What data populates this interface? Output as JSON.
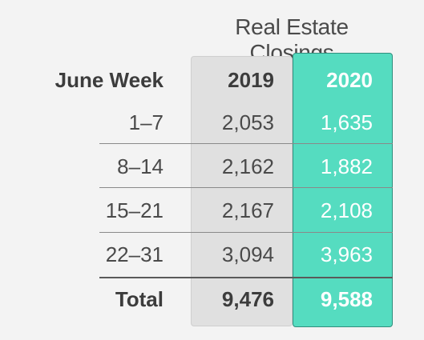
{
  "chart_data": {
    "type": "table",
    "title": "Real Estate Closings",
    "row_header": "June Week",
    "columns": [
      "2019",
      "2020"
    ],
    "rows": [
      {
        "label": "1–7",
        "values": [
          "2,053",
          "1,635"
        ]
      },
      {
        "label": "8–14",
        "values": [
          "2,162",
          "1,882"
        ]
      },
      {
        "label": "15–21",
        "values": [
          "2,167",
          "2,108"
        ]
      },
      {
        "label": "22–31",
        "values": [
          "3,094",
          "3,963"
        ]
      }
    ],
    "total": {
      "label": "Total",
      "values": [
        "9,476",
        "9,588"
      ]
    },
    "colors": {
      "background": "#f3f3f3",
      "col_2019_fill": "#e0e0e0",
      "col_2020_fill": "#55dcc0",
      "col_2020_border": "#2f8f7e",
      "text": "#4a4a4a",
      "highlight_text": "#ffffff"
    }
  }
}
